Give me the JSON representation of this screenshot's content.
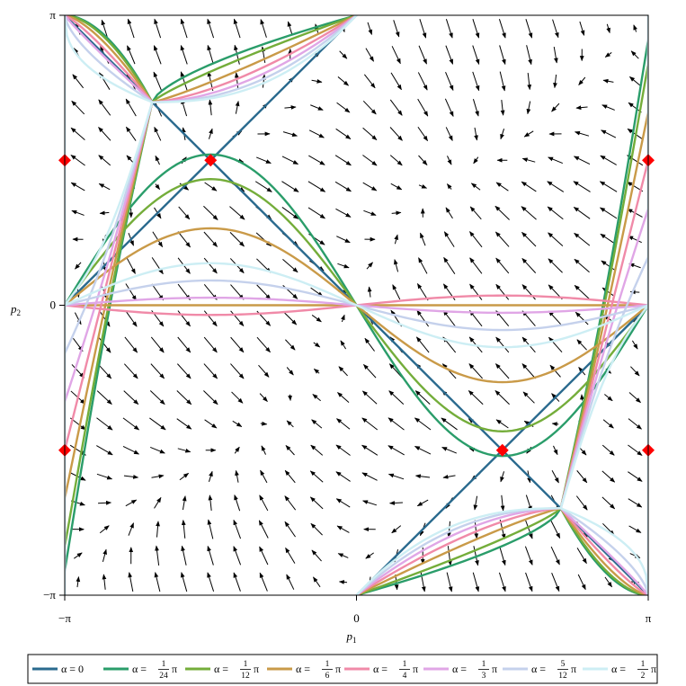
{
  "chart_data": {
    "type": "line",
    "xlabel": "p1",
    "ylabel": "p2",
    "xlim": [
      -3.14159265,
      3.14159265
    ],
    "ylim": [
      -3.14159265,
      3.14159265
    ],
    "xticks": [
      {
        "value": -3.14159265,
        "label": "−π"
      },
      {
        "value": 0,
        "label": "0"
      },
      {
        "value": 3.14159265,
        "label": "π"
      }
    ],
    "yticks": [
      {
        "value": -3.14159265,
        "label": "−π"
      },
      {
        "value": 0,
        "label": "0"
      },
      {
        "value": 3.14159265,
        "label": "π"
      }
    ],
    "grid": false,
    "legend_position": "bottom",
    "vector_field": {
      "rows": 22,
      "cols": 22,
      "color": "#000000"
    },
    "fixed_points": {
      "color": "#ff0000",
      "points": [
        {
          "x": -3.14159265,
          "y": 1.5707963
        },
        {
          "x": -1.5707963,
          "y": 1.5707963
        },
        {
          "x": 3.14159265,
          "y": 1.5707963
        },
        {
          "x": -3.14159265,
          "y": -1.5707963
        },
        {
          "x": 1.5707963,
          "y": -1.5707963
        },
        {
          "x": 3.14159265,
          "y": -1.5707963
        }
      ]
    },
    "series": [
      {
        "name": "α = 0",
        "label_prefix": "α = 0",
        "num": "",
        "den": "",
        "suffix": "",
        "alpha_frac": 0,
        "color": "#2a6a8e"
      },
      {
        "name": "α = 1/24 π",
        "label_prefix": "α =",
        "num": "1",
        "den": "24",
        "suffix": "π",
        "alpha_frac": 0.0833,
        "color": "#2a9d6a"
      },
      {
        "name": "α = 1/12 π",
        "label_prefix": "α =",
        "num": "1",
        "den": "12",
        "suffix": "π",
        "alpha_frac": 0.1667,
        "color": "#74ad3a"
      },
      {
        "name": "α = 1/6 π",
        "label_prefix": "α =",
        "num": "1",
        "den": "6",
        "suffix": "π",
        "alpha_frac": 0.3333,
        "color": "#c99a48"
      },
      {
        "name": "α = 1/4 π",
        "label_prefix": "α =",
        "num": "1",
        "den": "4",
        "suffix": "π",
        "alpha_frac": 0.5,
        "color": "#f08aa8"
      },
      {
        "name": "α = 1/3 π",
        "label_prefix": "α =",
        "num": "1",
        "den": "3",
        "suffix": "π",
        "alpha_frac": 0.6667,
        "color": "#e0a6e6"
      },
      {
        "name": "α = 5/12 π",
        "label_prefix": "α =",
        "num": "5",
        "den": "12",
        "suffix": "π",
        "alpha_frac": 0.8333,
        "color": "#c5d1ec"
      },
      {
        "name": "α = 1/2 π",
        "label_prefix": "α =",
        "num": "1",
        "den": "2",
        "suffix": "π",
        "alpha_frac": 1.0,
        "color": "#cdeef4"
      }
    ]
  }
}
